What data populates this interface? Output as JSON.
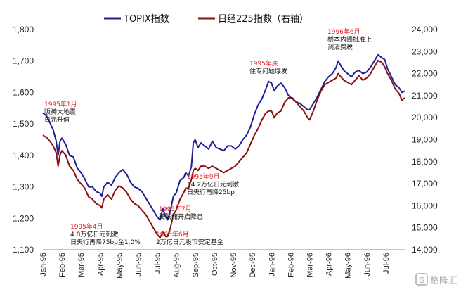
{
  "chart_data": {
    "type": "line",
    "title": "",
    "xlabel": "",
    "ylabel": "",
    "legend": [
      {
        "name": "TOPIX指数",
        "color": "#1f1f99"
      },
      {
        "name": "日经225指数（右轴）",
        "color": "#8b1010"
      }
    ],
    "legend_placement": "top-center",
    "grid": false,
    "x_categories": [
      "Jan-95",
      "Feb-95",
      "Mar-95",
      "Apr-95",
      "May-95",
      "Jun-95",
      "Jul-95",
      "Aug-95",
      "Sep-95",
      "Oct-95",
      "Nov-95",
      "Dec-95",
      "Jan-96",
      "Feb-96",
      "Mar-96",
      "Apr-96",
      "May-96",
      "Jun-96",
      "Jul-96"
    ],
    "x_range": [
      0,
      19
    ],
    "y_left": {
      "ylim": [
        1100,
        1800
      ],
      "ticks": [
        "1,100",
        "1,200",
        "1,300",
        "1,400",
        "1,500",
        "1,600",
        "1,700",
        "1,800"
      ]
    },
    "y_right": {
      "ylim": [
        14000,
        24000
      ],
      "ticks": [
        "14,000",
        "15,000",
        "16,000",
        "17,000",
        "18,000",
        "19,000",
        "20,000",
        "21,000",
        "22,000",
        "23,000",
        "24,000"
      ]
    },
    "series": [
      {
        "name": "TOPIX指数",
        "axis": "left",
        "color": "#1f1f99",
        "points": [
          [
            0.0,
            1535
          ],
          [
            0.2,
            1525
          ],
          [
            0.4,
            1500
          ],
          [
            0.55,
            1480
          ],
          [
            0.7,
            1445
          ],
          [
            0.8,
            1400
          ],
          [
            0.9,
            1445
          ],
          [
            1.0,
            1455
          ],
          [
            1.2,
            1435
          ],
          [
            1.4,
            1400
          ],
          [
            1.6,
            1395
          ],
          [
            1.8,
            1360
          ],
          [
            2.0,
            1345
          ],
          [
            2.2,
            1325
          ],
          [
            2.4,
            1300
          ],
          [
            2.6,
            1300
          ],
          [
            2.8,
            1285
          ],
          [
            3.0,
            1280
          ],
          [
            3.1,
            1270
          ],
          [
            3.2,
            1300
          ],
          [
            3.4,
            1315
          ],
          [
            3.6,
            1305
          ],
          [
            3.8,
            1330
          ],
          [
            4.0,
            1345
          ],
          [
            4.2,
            1355
          ],
          [
            4.4,
            1340
          ],
          [
            4.6,
            1315
          ],
          [
            4.8,
            1300
          ],
          [
            5.0,
            1295
          ],
          [
            5.2,
            1285
          ],
          [
            5.4,
            1265
          ],
          [
            5.6,
            1245
          ],
          [
            5.8,
            1225
          ],
          [
            6.0,
            1205
          ],
          [
            6.15,
            1195
          ],
          [
            6.3,
            1230
          ],
          [
            6.45,
            1205
          ],
          [
            6.55,
            1195
          ],
          [
            6.7,
            1225
          ],
          [
            6.85,
            1270
          ],
          [
            7.0,
            1280
          ],
          [
            7.2,
            1320
          ],
          [
            7.4,
            1330
          ],
          [
            7.5,
            1345
          ],
          [
            7.65,
            1335
          ],
          [
            7.8,
            1365
          ],
          [
            7.9,
            1440
          ],
          [
            8.0,
            1450
          ],
          [
            8.15,
            1425
          ],
          [
            8.3,
            1440
          ],
          [
            8.5,
            1430
          ],
          [
            8.7,
            1420
          ],
          [
            8.9,
            1445
          ],
          [
            9.1,
            1425
          ],
          [
            9.3,
            1420
          ],
          [
            9.5,
            1415
          ],
          [
            9.7,
            1430
          ],
          [
            9.9,
            1430
          ],
          [
            10.1,
            1420
          ],
          [
            10.3,
            1430
          ],
          [
            10.5,
            1450
          ],
          [
            10.7,
            1465
          ],
          [
            10.9,
            1490
          ],
          [
            11.1,
            1530
          ],
          [
            11.3,
            1560
          ],
          [
            11.5,
            1580
          ],
          [
            11.7,
            1610
          ],
          [
            11.85,
            1635
          ],
          [
            12.0,
            1630
          ],
          [
            12.15,
            1605
          ],
          [
            12.3,
            1620
          ],
          [
            12.5,
            1630
          ],
          [
            12.7,
            1615
          ],
          [
            12.9,
            1590
          ],
          [
            13.1,
            1580
          ],
          [
            13.3,
            1570
          ],
          [
            13.5,
            1565
          ],
          [
            13.7,
            1555
          ],
          [
            13.9,
            1545
          ],
          [
            14.0,
            1545
          ],
          [
            14.2,
            1565
          ],
          [
            14.4,
            1585
          ],
          [
            14.6,
            1610
          ],
          [
            14.8,
            1635
          ],
          [
            15.0,
            1650
          ],
          [
            15.2,
            1660
          ],
          [
            15.4,
            1680
          ],
          [
            15.5,
            1700
          ],
          [
            15.6,
            1690
          ],
          [
            15.8,
            1670
          ],
          [
            16.0,
            1660
          ],
          [
            16.2,
            1650
          ],
          [
            16.4,
            1665
          ],
          [
            16.6,
            1670
          ],
          [
            16.8,
            1660
          ],
          [
            17.0,
            1665
          ],
          [
            17.2,
            1680
          ],
          [
            17.4,
            1700
          ],
          [
            17.6,
            1720
          ],
          [
            17.8,
            1710
          ],
          [
            17.95,
            1705
          ],
          [
            18.1,
            1675
          ],
          [
            18.3,
            1650
          ],
          [
            18.5,
            1625
          ],
          [
            18.7,
            1615
          ],
          [
            18.85,
            1600
          ],
          [
            19.0,
            1605
          ]
        ]
      },
      {
        "name": "日经225指数（右轴）",
        "axis": "right",
        "color": "#8b1010",
        "points": [
          [
            0.0,
            19200
          ],
          [
            0.2,
            19100
          ],
          [
            0.4,
            18900
          ],
          [
            0.55,
            18700
          ],
          [
            0.7,
            18400
          ],
          [
            0.8,
            17800
          ],
          [
            0.9,
            18300
          ],
          [
            1.0,
            18500
          ],
          [
            1.2,
            18300
          ],
          [
            1.4,
            17800
          ],
          [
            1.6,
            17600
          ],
          [
            1.8,
            17200
          ],
          [
            2.0,
            17000
          ],
          [
            2.2,
            16800
          ],
          [
            2.4,
            16400
          ],
          [
            2.6,
            16300
          ],
          [
            2.8,
            16100
          ],
          [
            3.0,
            16000
          ],
          [
            3.1,
            15900
          ],
          [
            3.2,
            16300
          ],
          [
            3.4,
            16500
          ],
          [
            3.6,
            16300
          ],
          [
            3.8,
            16700
          ],
          [
            4.0,
            16900
          ],
          [
            4.2,
            16800
          ],
          [
            4.4,
            16600
          ],
          [
            4.6,
            16300
          ],
          [
            4.8,
            16100
          ],
          [
            5.0,
            16000
          ],
          [
            5.2,
            15800
          ],
          [
            5.4,
            15600
          ],
          [
            5.6,
            15300
          ],
          [
            5.8,
            15000
          ],
          [
            6.0,
            14700
          ],
          [
            6.15,
            14550
          ],
          [
            6.3,
            14800
          ],
          [
            6.45,
            14600
          ],
          [
            6.55,
            14600
          ],
          [
            6.7,
            15000
          ],
          [
            6.85,
            15600
          ],
          [
            7.0,
            15800
          ],
          [
            7.2,
            16300
          ],
          [
            7.4,
            16600
          ],
          [
            7.5,
            16800
          ],
          [
            7.65,
            16800
          ],
          [
            7.8,
            17200
          ],
          [
            7.9,
            17600
          ],
          [
            8.0,
            17700
          ],
          [
            8.15,
            17600
          ],
          [
            8.3,
            17800
          ],
          [
            8.5,
            17800
          ],
          [
            8.7,
            17700
          ],
          [
            8.9,
            17800
          ],
          [
            9.1,
            17700
          ],
          [
            9.3,
            17600
          ],
          [
            9.5,
            17500
          ],
          [
            9.7,
            17600
          ],
          [
            9.9,
            17700
          ],
          [
            10.1,
            17800
          ],
          [
            10.3,
            18000
          ],
          [
            10.5,
            18200
          ],
          [
            10.7,
            18400
          ],
          [
            10.9,
            18800
          ],
          [
            11.1,
            19200
          ],
          [
            11.3,
            19500
          ],
          [
            11.5,
            19900
          ],
          [
            11.7,
            20200
          ],
          [
            11.85,
            20300
          ],
          [
            12.0,
            20300
          ],
          [
            12.15,
            20000
          ],
          [
            12.3,
            20200
          ],
          [
            12.5,
            20300
          ],
          [
            12.7,
            20700
          ],
          [
            12.9,
            20900
          ],
          [
            13.1,
            20900
          ],
          [
            13.3,
            20700
          ],
          [
            13.5,
            20500
          ],
          [
            13.7,
            20300
          ],
          [
            13.9,
            20000
          ],
          [
            14.0,
            19900
          ],
          [
            14.2,
            20300
          ],
          [
            14.4,
            20800
          ],
          [
            14.6,
            21200
          ],
          [
            14.8,
            21500
          ],
          [
            15.0,
            21600
          ],
          [
            15.2,
            21700
          ],
          [
            15.4,
            21800
          ],
          [
            15.5,
            22000
          ],
          [
            15.6,
            21900
          ],
          [
            15.8,
            21700
          ],
          [
            16.0,
            21600
          ],
          [
            16.2,
            21500
          ],
          [
            16.4,
            21700
          ],
          [
            16.6,
            21900
          ],
          [
            16.8,
            21700
          ],
          [
            17.0,
            21800
          ],
          [
            17.2,
            22000
          ],
          [
            17.4,
            22300
          ],
          [
            17.6,
            22600
          ],
          [
            17.8,
            22500
          ],
          [
            17.95,
            22300
          ],
          [
            18.1,
            22000
          ],
          [
            18.3,
            21700
          ],
          [
            18.5,
            21300
          ],
          [
            18.7,
            21100
          ],
          [
            18.85,
            20800
          ],
          [
            19.0,
            20900
          ]
        ]
      }
    ],
    "annotations": [
      {
        "date": "1995年1月",
        "lines": [
          "阪神大地震",
          "日元升值"
        ]
      },
      {
        "date": "1995年4月",
        "lines": [
          "4.8万亿日元刺激",
          "日央行再降75bp至1.0%"
        ]
      },
      {
        "date": "1995年6月",
        "lines": [
          "2万亿日元股市安定基金"
        ]
      },
      {
        "date": "1995年7月",
        "lines": [
          "美联储开启降息"
        ]
      },
      {
        "date": "1995年9月",
        "lines": [
          "14.2万亿日元刺激",
          "日央行再降25bp"
        ]
      },
      {
        "date": "1995年底",
        "lines": [
          "住专问题爆发"
        ]
      },
      {
        "date": "1996年6月",
        "lines": [
          "桥本内阁批准上",
          "调消费税"
        ]
      }
    ]
  },
  "watermark": {
    "icon": "gelonghui-logo-icon",
    "text": "格隆汇"
  }
}
